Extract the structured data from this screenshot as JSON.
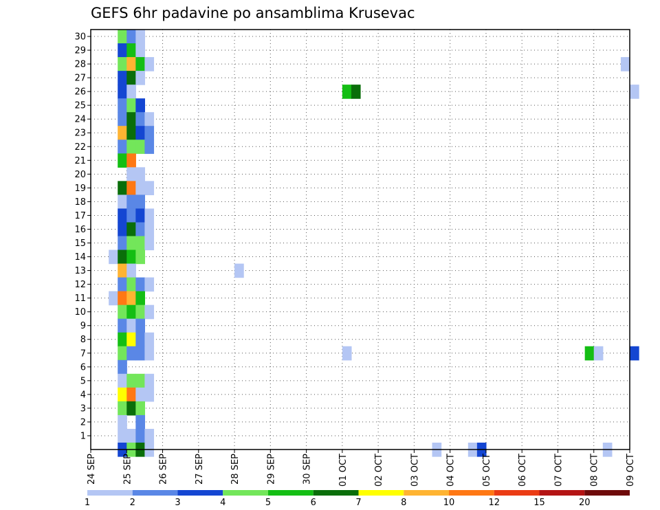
{
  "chart_data": {
    "type": "heatmap",
    "title": "GEFS 6hr padavine po ansamblima Krusevac",
    "x_ticks": [
      "24 SEP",
      "25 SEP",
      "26 SEP",
      "27 SEP",
      "28 SEP",
      "29 SEP",
      "30 SEP",
      "01 OCT",
      "02 OCT",
      "03 OCT",
      "04 OCT",
      "05 OCT",
      "06 OCT",
      "07 OCT",
      "08 OCT",
      "09 OCT"
    ],
    "y_ticks": [
      "1",
      "2",
      "3",
      "4",
      "5",
      "6",
      "7",
      "8",
      "9",
      "10",
      "11",
      "12",
      "13",
      "14",
      "15",
      "16",
      "17",
      "18",
      "19",
      "20",
      "21",
      "22",
      "23",
      "24",
      "25",
      "26",
      "27",
      "28",
      "29",
      "30"
    ],
    "y_range": [
      0,
      30
    ],
    "time_step_hours": 6,
    "grid": true,
    "colorbar": {
      "labels": [
        "1",
        "2",
        "3",
        "4",
        "5",
        "6",
        "7",
        "8",
        "10",
        "12",
        "15",
        "20"
      ],
      "colors": [
        "#b4c6f4",
        "#5a87e6",
        "#1446d2",
        "#73e65a",
        "#14be14",
        "#0a6e0a",
        "#ffff00",
        "#ffb432",
        "#ff7814",
        "#eb3c14",
        "#b41414",
        "#6e0a0a"
      ]
    },
    "cells": [
      {
        "m": 30,
        "s": "24 SEP 18Z",
        "c": 4
      },
      {
        "m": 30,
        "s": "25 SEP 00Z",
        "c": 2
      },
      {
        "m": 30,
        "s": "25 SEP 06Z",
        "c": 1
      },
      {
        "m": 29,
        "s": "24 SEP 18Z",
        "c": 3
      },
      {
        "m": 29,
        "s": "25 SEP 00Z",
        "c": 5
      },
      {
        "m": 29,
        "s": "25 SEP 06Z",
        "c": 1
      },
      {
        "m": 28,
        "s": "24 SEP 18Z",
        "c": 4
      },
      {
        "m": 28,
        "s": "25 SEP 00Z",
        "c": 8
      },
      {
        "m": 28,
        "s": "25 SEP 06Z",
        "c": 5
      },
      {
        "m": 28,
        "s": "25 SEP 12Z",
        "c": 1
      },
      {
        "m": 28,
        "s": "08 OCT 18Z",
        "c": 1
      },
      {
        "m": 27,
        "s": "24 SEP 18Z",
        "c": 3
      },
      {
        "m": 27,
        "s": "25 SEP 00Z",
        "c": 6
      },
      {
        "m": 27,
        "s": "25 SEP 06Z",
        "c": 1
      },
      {
        "m": 26,
        "s": "24 SEP 18Z",
        "c": 3
      },
      {
        "m": 26,
        "s": "25 SEP 00Z",
        "c": 1
      },
      {
        "m": 26,
        "s": "01 OCT 00Z",
        "c": 5
      },
      {
        "m": 26,
        "s": "01 OCT 06Z",
        "c": 6
      },
      {
        "m": 26,
        "s": "09 OCT 00Z",
        "c": 1
      },
      {
        "m": 25,
        "s": "24 SEP 18Z",
        "c": 2
      },
      {
        "m": 25,
        "s": "25 SEP 00Z",
        "c": 4
      },
      {
        "m": 25,
        "s": "25 SEP 06Z",
        "c": 3
      },
      {
        "m": 24,
        "s": "24 SEP 18Z",
        "c": 2
      },
      {
        "m": 24,
        "s": "25 SEP 00Z",
        "c": 6
      },
      {
        "m": 24,
        "s": "25 SEP 06Z",
        "c": 2
      },
      {
        "m": 24,
        "s": "25 SEP 12Z",
        "c": 1
      },
      {
        "m": 23,
        "s": "24 SEP 18Z",
        "c": 8
      },
      {
        "m": 23,
        "s": "25 SEP 00Z",
        "c": 6
      },
      {
        "m": 23,
        "s": "25 SEP 06Z",
        "c": 3
      },
      {
        "m": 23,
        "s": "25 SEP 12Z",
        "c": 2
      },
      {
        "m": 22,
        "s": "24 SEP 18Z",
        "c": 2
      },
      {
        "m": 22,
        "s": "25 SEP 00Z",
        "c": 4
      },
      {
        "m": 22,
        "s": "25 SEP 06Z",
        "c": 4
      },
      {
        "m": 22,
        "s": "25 SEP 12Z",
        "c": 2
      },
      {
        "m": 21,
        "s": "24 SEP 18Z",
        "c": 5
      },
      {
        "m": 21,
        "s": "25 SEP 00Z",
        "c": 9
      },
      {
        "m": 20,
        "s": "25 SEP 00Z",
        "c": 1
      },
      {
        "m": 20,
        "s": "25 SEP 06Z",
        "c": 1
      },
      {
        "m": 19,
        "s": "24 SEP 18Z",
        "c": 6
      },
      {
        "m": 19,
        "s": "25 SEP 00Z",
        "c": 9
      },
      {
        "m": 19,
        "s": "25 SEP 06Z",
        "c": 1
      },
      {
        "m": 19,
        "s": "25 SEP 12Z",
        "c": 1
      },
      {
        "m": 18,
        "s": "24 SEP 18Z",
        "c": 1
      },
      {
        "m": 18,
        "s": "25 SEP 00Z",
        "c": 2
      },
      {
        "m": 18,
        "s": "25 SEP 06Z",
        "c": 2
      },
      {
        "m": 17,
        "s": "24 SEP 18Z",
        "c": 3
      },
      {
        "m": 17,
        "s": "25 SEP 00Z",
        "c": 2
      },
      {
        "m": 17,
        "s": "25 SEP 06Z",
        "c": 3
      },
      {
        "m": 17,
        "s": "25 SEP 12Z",
        "c": 1
      },
      {
        "m": 16,
        "s": "24 SEP 18Z",
        "c": 3
      },
      {
        "m": 16,
        "s": "25 SEP 00Z",
        "c": 6
      },
      {
        "m": 16,
        "s": "25 SEP 06Z",
        "c": 2
      },
      {
        "m": 16,
        "s": "25 SEP 12Z",
        "c": 1
      },
      {
        "m": 15,
        "s": "24 SEP 18Z",
        "c": 2
      },
      {
        "m": 15,
        "s": "25 SEP 00Z",
        "c": 4
      },
      {
        "m": 15,
        "s": "25 SEP 06Z",
        "c": 4
      },
      {
        "m": 15,
        "s": "25 SEP 12Z",
        "c": 1
      },
      {
        "m": 14,
        "s": "24 SEP 12Z",
        "c": 1
      },
      {
        "m": 14,
        "s": "24 SEP 18Z",
        "c": 6
      },
      {
        "m": 14,
        "s": "25 SEP 00Z",
        "c": 5
      },
      {
        "m": 14,
        "s": "25 SEP 06Z",
        "c": 4
      },
      {
        "m": 13,
        "s": "24 SEP 18Z",
        "c": 8
      },
      {
        "m": 13,
        "s": "25 SEP 00Z",
        "c": 1
      },
      {
        "m": 13,
        "s": "28 SEP 00Z",
        "c": 1
      },
      {
        "m": 12,
        "s": "24 SEP 18Z",
        "c": 2
      },
      {
        "m": 12,
        "s": "25 SEP 00Z",
        "c": 4
      },
      {
        "m": 12,
        "s": "25 SEP 06Z",
        "c": 2
      },
      {
        "m": 12,
        "s": "25 SEP 12Z",
        "c": 1
      },
      {
        "m": 11,
        "s": "24 SEP 12Z",
        "c": 1
      },
      {
        "m": 11,
        "s": "24 SEP 18Z",
        "c": 9
      },
      {
        "m": 11,
        "s": "25 SEP 00Z",
        "c": 8
      },
      {
        "m": 11,
        "s": "25 SEP 06Z",
        "c": 5
      },
      {
        "m": 10,
        "s": "24 SEP 18Z",
        "c": 4
      },
      {
        "m": 10,
        "s": "25 SEP 00Z",
        "c": 5
      },
      {
        "m": 10,
        "s": "25 SEP 06Z",
        "c": 4
      },
      {
        "m": 10,
        "s": "25 SEP 12Z",
        "c": 1
      },
      {
        "m": 9,
        "s": "24 SEP 18Z",
        "c": 2
      },
      {
        "m": 9,
        "s": "25 SEP 00Z",
        "c": 1
      },
      {
        "m": 9,
        "s": "25 SEP 06Z",
        "c": 2
      },
      {
        "m": 8,
        "s": "24 SEP 18Z",
        "c": 5
      },
      {
        "m": 8,
        "s": "25 SEP 00Z",
        "c": 7
      },
      {
        "m": 8,
        "s": "25 SEP 06Z",
        "c": 2
      },
      {
        "m": 8,
        "s": "25 SEP 12Z",
        "c": 1
      },
      {
        "m": 7,
        "s": "24 SEP 18Z",
        "c": 4
      },
      {
        "m": 7,
        "s": "25 SEP 00Z",
        "c": 2
      },
      {
        "m": 7,
        "s": "25 SEP 06Z",
        "c": 2
      },
      {
        "m": 7,
        "s": "25 SEP 12Z",
        "c": 1
      },
      {
        "m": 7,
        "s": "01 OCT 00Z",
        "c": 1
      },
      {
        "m": 7,
        "s": "07 OCT 18Z",
        "c": 5
      },
      {
        "m": 7,
        "s": "08 OCT 00Z",
        "c": 1
      },
      {
        "m": 7,
        "s": "09 OCT 00Z",
        "c": 3
      },
      {
        "m": 6,
        "s": "24 SEP 18Z",
        "c": 2
      },
      {
        "m": 5,
        "s": "24 SEP 18Z",
        "c": 1
      },
      {
        "m": 5,
        "s": "25 SEP 00Z",
        "c": 4
      },
      {
        "m": 5,
        "s": "25 SEP 06Z",
        "c": 4
      },
      {
        "m": 5,
        "s": "25 SEP 12Z",
        "c": 1
      },
      {
        "m": 4,
        "s": "24 SEP 18Z",
        "c": 7
      },
      {
        "m": 4,
        "s": "25 SEP 00Z",
        "c": 9
      },
      {
        "m": 4,
        "s": "25 SEP 06Z",
        "c": 1
      },
      {
        "m": 4,
        "s": "25 SEP 12Z",
        "c": 1
      },
      {
        "m": 3,
        "s": "24 SEP 18Z",
        "c": 4
      },
      {
        "m": 3,
        "s": "25 SEP 00Z",
        "c": 6
      },
      {
        "m": 3,
        "s": "25 SEP 06Z",
        "c": 4
      },
      {
        "m": 2,
        "s": "24 SEP 18Z",
        "c": 1
      },
      {
        "m": 2,
        "s": "25 SEP 06Z",
        "c": 2
      },
      {
        "m": 1,
        "s": "24 SEP 18Z",
        "c": 1
      },
      {
        "m": 1,
        "s": "25 SEP 00Z",
        "c": 1
      },
      {
        "m": 1,
        "s": "25 SEP 06Z",
        "c": 2
      },
      {
        "m": 1,
        "s": "25 SEP 12Z",
        "c": 1
      },
      {
        "m": 0,
        "s": "24 SEP 18Z",
        "c": 3
      },
      {
        "m": 0,
        "s": "25 SEP 00Z",
        "c": 4
      },
      {
        "m": 0,
        "s": "25 SEP 06Z",
        "c": 6
      },
      {
        "m": 0,
        "s": "25 SEP 12Z",
        "c": 1
      },
      {
        "m": 0,
        "s": "03 OCT 12Z",
        "c": 1
      },
      {
        "m": 0,
        "s": "04 OCT 12Z",
        "c": 1
      },
      {
        "m": 0,
        "s": "04 OCT 18Z",
        "c": 3
      },
      {
        "m": 0,
        "s": "08 OCT 06Z",
        "c": 1
      }
    ]
  }
}
